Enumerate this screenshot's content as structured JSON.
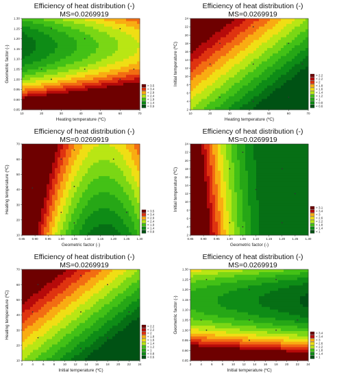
{
  "chart_data": [
    {
      "type": "heatmap",
      "title": "Efficiency of heat distribution (-)",
      "subtitle": "MS=0.0269919",
      "xlabel": "Heating temperature (ºC)",
      "ylabel": "Geometric factor (-)",
      "xlim": [
        10,
        70
      ],
      "ylim": [
        0.85,
        1.3
      ],
      "xticks": [
        "10",
        "20",
        "30",
        "40",
        "50",
        "60",
        "70"
      ],
      "yticks": [
        "0.85",
        "0.90",
        "0.95",
        "1.00",
        "1.05",
        "1.10",
        "1.15",
        "1.20",
        "1.25",
        "1.30"
      ],
      "legend": [
        "> 3.5",
        "< 3.4",
        "< 2.9",
        "< 2.4",
        "< 1.9",
        "< 1.4",
        "< 0.9"
      ],
      "points": [
        [
          20,
          1.05
        ],
        [
          25,
          1.25
        ],
        [
          25,
          1.0
        ],
        [
          42,
          1.2
        ],
        [
          42,
          1.05
        ],
        [
          60,
          1.25
        ],
        [
          60,
          1.0
        ],
        [
          67,
          1.05
        ]
      ]
    },
    {
      "type": "heatmap",
      "title": "Efficiency of heat distribution (-)",
      "subtitle": "MS=0.0269919",
      "xlabel": "Heating temperature (ºC)",
      "ylabel": "Initial temperature (ºC)",
      "xlim": [
        10,
        70
      ],
      "ylim": [
        2,
        24
      ],
      "xticks": [
        "10",
        "20",
        "30",
        "40",
        "50",
        "60",
        "70"
      ],
      "yticks": [
        "2",
        "4",
        "6",
        "8",
        "10",
        "12",
        "14",
        "16",
        "18",
        "20",
        "22",
        "24"
      ],
      "legend": [
        "> 2.2",
        "< 2.2",
        "< 2",
        "< 1.8",
        "< 1.6",
        "< 1.4",
        "< 1.2",
        "< 1",
        "< 0.8",
        "< 0.6"
      ],
      "points": [
        [
          20,
          13
        ],
        [
          25,
          18
        ],
        [
          25,
          5
        ],
        [
          42,
          22
        ],
        [
          42,
          13
        ],
        [
          42,
          4
        ],
        [
          60,
          18
        ],
        [
          60,
          5
        ],
        [
          67,
          13
        ]
      ]
    },
    {
      "type": "heatmap",
      "title": "Efficiency of heat distribution (-)",
      "subtitle": "MS=0.0269919",
      "xlabel": "Geometric factor (-)",
      "ylabel": "Heating temperature (ºC)",
      "xlim": [
        0.85,
        1.3
      ],
      "ylim": [
        10,
        70
      ],
      "xticks": [
        "0.85",
        "0.90",
        "0.95",
        "1.00",
        "1.05",
        "1.10",
        "1.15",
        "1.20",
        "1.25",
        "1.30"
      ],
      "yticks": [
        "10",
        "20",
        "30",
        "40",
        "50",
        "60",
        "70"
      ],
      "legend": [
        "> 3.5",
        "< 3.4",
        "< 2.9",
        "< 2.4",
        "< 1.9",
        "< 1.4",
        "< 0.9"
      ],
      "points": [
        [
          0.89,
          41
        ],
        [
          1.0,
          60
        ],
        [
          1.0,
          25
        ],
        [
          1.05,
          66
        ],
        [
          1.05,
          42
        ],
        [
          1.05,
          18
        ],
        [
          1.2,
          60
        ],
        [
          1.25,
          25
        ]
      ]
    },
    {
      "type": "heatmap",
      "title": "Efficiency of heat distribution (-)",
      "subtitle": "MS=0.0269919",
      "xlabel": "Geometric factor (-)",
      "ylabel": "Initial temperature (ºC)",
      "xlim": [
        0.85,
        1.3
      ],
      "ylim": [
        2,
        24
      ],
      "xticks": [
        "0.85",
        "0.90",
        "0.95",
        "1.00",
        "1.05",
        "1.10",
        "1.15",
        "1.20",
        "1.25",
        "1.30"
      ],
      "yticks": [
        "2",
        "4",
        "6",
        "8",
        "10",
        "12",
        "14",
        "16",
        "18",
        "20",
        "22",
        "24"
      ],
      "legend": [
        "> 3.1",
        "< 3.4",
        "< 3",
        "< 2.6",
        "< 2.2",
        "< 1.8",
        "< 1.4",
        "< 1"
      ],
      "points": [
        [
          1.0,
          18
        ],
        [
          1.0,
          5
        ],
        [
          1.05,
          22
        ],
        [
          1.05,
          4
        ],
        [
          1.1,
          13
        ],
        [
          1.2,
          18
        ],
        [
          1.2,
          5
        ],
        [
          1.25,
          12
        ]
      ]
    },
    {
      "type": "heatmap",
      "title": "Efficiency of heat distribution (-)",
      "subtitle": "MS=0.0269919",
      "xlabel": "Initial temperature (ºC)",
      "ylabel": "Heating temperature (ºC)",
      "xlim": [
        2,
        24
      ],
      "ylim": [
        10,
        70
      ],
      "xticks": [
        "2",
        "4",
        "6",
        "8",
        "10",
        "12",
        "14",
        "16",
        "18",
        "20",
        "22",
        "24"
      ],
      "yticks": [
        "10",
        "20",
        "30",
        "40",
        "50",
        "60",
        "70"
      ],
      "legend": [
        "> 2.2",
        "< 2.2",
        "< 2",
        "< 1.8",
        "< 1.6",
        "< 1.4",
        "< 1.2",
        "< 1",
        "< 0.8",
        "< 0.6"
      ],
      "points": [
        [
          5,
          60
        ],
        [
          5,
          25
        ],
        [
          4,
          42
        ],
        [
          13,
          66
        ],
        [
          13,
          42
        ],
        [
          13,
          18
        ],
        [
          18,
          60
        ],
        [
          18,
          25
        ],
        [
          22,
          42
        ]
      ]
    },
    {
      "type": "heatmap",
      "title": "Efficiency of heat distribution (-)",
      "subtitle": "MS=0.0269919",
      "xlabel": "Initial temperature (ºC)",
      "ylabel": "Geometric factor (-)",
      "xlim": [
        2,
        24
      ],
      "ylim": [
        0.85,
        1.3
      ],
      "xticks": [
        "2",
        "4",
        "6",
        "8",
        "10",
        "12",
        "14",
        "16",
        "18",
        "20",
        "22",
        "24"
      ],
      "yticks": [
        "0.85",
        "0.90",
        "0.95",
        "1.00",
        "1.05",
        "1.10",
        "1.15",
        "1.20",
        "1.25",
        "1.30"
      ],
      "legend": [
        "> 3.4",
        "< 3.4",
        "< 3",
        "< 2.6",
        "< 2.2",
        "< 1.8",
        "< 1.4",
        "< 1"
      ],
      "points": [
        [
          5,
          1.25
        ],
        [
          5,
          1.0
        ],
        [
          4,
          1.05
        ],
        [
          13,
          1.2
        ],
        [
          13,
          1.05
        ],
        [
          13,
          0.95
        ],
        [
          18,
          1.25
        ],
        [
          18,
          1.0
        ],
        [
          22,
          1.05
        ]
      ]
    }
  ]
}
